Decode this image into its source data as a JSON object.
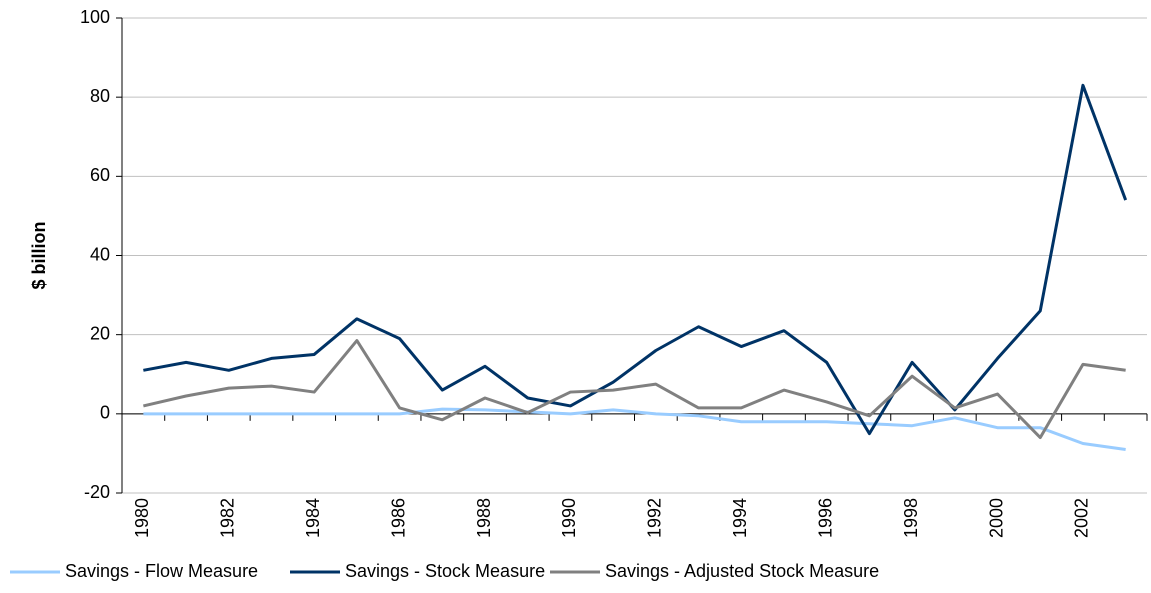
{
  "chart_data": {
    "type": "line",
    "y_label": "$ billion",
    "categories": [
      "1980",
      null,
      "1982",
      null,
      "1984",
      null,
      "1986",
      null,
      "1988",
      null,
      "1990",
      null,
      "1992",
      null,
      "1994",
      null,
      "1996",
      null,
      "1998",
      null,
      "2000",
      null,
      "2002",
      null
    ],
    "series": [
      {
        "name": "Savings - Flow Measure",
        "color": "#99ccff",
        "values": [
          0,
          0,
          0,
          0,
          0,
          0,
          0,
          1.2,
          1,
          0.5,
          0,
          1,
          0,
          -0.5,
          -2,
          -2,
          -2,
          -2.5,
          -3,
          -1,
          -3.5,
          -3.5,
          -7.5,
          -9
        ]
      },
      {
        "name": "Savings - Stock Measure",
        "color": "#003366",
        "values": [
          11,
          13,
          11,
          14,
          15,
          24,
          19,
          6,
          12,
          4,
          2,
          8,
          16,
          22,
          17,
          21,
          13,
          -5,
          13,
          1,
          14,
          26,
          83,
          54
        ]
      },
      {
        "name": "Savings - Adjusted Stock Measure",
        "color": "#808080",
        "values": [
          2,
          4.5,
          6.5,
          7,
          5.5,
          18.5,
          1.5,
          -1.5,
          4,
          0.3,
          5.5,
          6,
          7.5,
          1.5,
          1.5,
          6,
          3,
          -0.5,
          9.5,
          1.5,
          5,
          -6,
          12.5,
          11
        ]
      }
    ],
    "ylim": [
      -20,
      100
    ],
    "yticks": [
      -20,
      0,
      20,
      40,
      60,
      80,
      100
    ],
    "grid": true,
    "legend": "bottom"
  }
}
